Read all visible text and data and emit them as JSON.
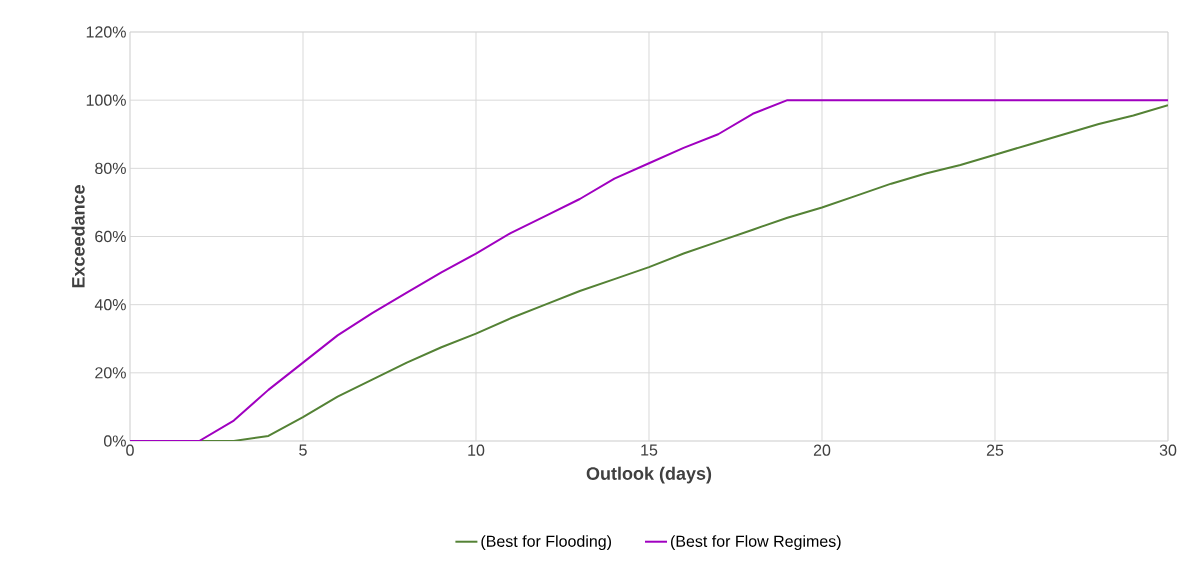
{
  "chart_data": {
    "type": "line",
    "xlabel": "Outlook (days)",
    "ylabel": "Exceedance",
    "x": [
      0,
      1,
      2,
      3,
      4,
      5,
      6,
      7,
      8,
      9,
      10,
      11,
      12,
      13,
      14,
      15,
      16,
      17,
      18,
      19,
      20,
      21,
      22,
      23,
      24,
      25,
      26,
      27,
      28,
      29,
      30
    ],
    "series": [
      {
        "name": "(Best for Flooding)",
        "color": "#548235",
        "values": [
          0,
          0,
          0,
          0,
          1.5,
          7,
          13,
          18,
          23,
          27.5,
          31.5,
          36,
          40,
          44,
          47.5,
          51,
          55,
          58.5,
          62,
          65.5,
          68.5,
          72,
          75.5,
          78.5,
          81,
          84,
          87,
          90,
          93,
          95.5,
          98.5
        ]
      },
      {
        "name": "(Best for Flow Regimes)",
        "color": "#a000c0",
        "values": [
          0,
          0,
          0,
          6,
          15,
          23,
          31,
          37.5,
          43.5,
          49.5,
          55,
          61,
          66,
          71,
          77,
          81.5,
          86,
          90,
          96,
          100,
          100,
          100,
          100,
          100,
          100,
          100,
          100,
          100,
          100,
          100,
          100
        ]
      }
    ],
    "xlim": [
      0,
      30
    ],
    "xticks": [
      0,
      5,
      10,
      15,
      20,
      25,
      30
    ],
    "ylim": [
      0,
      120
    ],
    "yticks": [
      {
        "value": 0,
        "label": "0%"
      },
      {
        "value": 20,
        "label": "20%"
      },
      {
        "value": 40,
        "label": "40%"
      },
      {
        "value": 60,
        "label": "60%"
      },
      {
        "value": 80,
        "label": "80%"
      },
      {
        "value": 100,
        "label": "100%"
      },
      {
        "value": 120,
        "label": "120%"
      }
    ],
    "grid": true,
    "legend": "bottom",
    "marker": "none",
    "line_style": "solid"
  }
}
